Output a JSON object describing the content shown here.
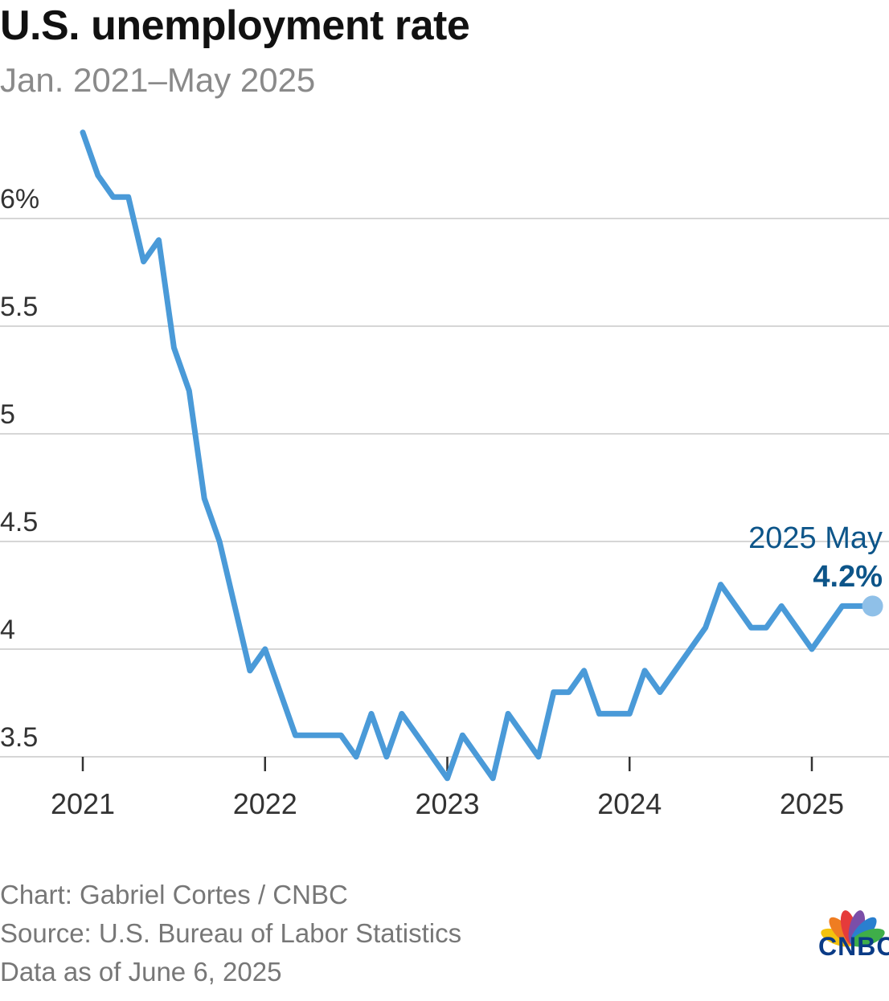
{
  "chart_data": {
    "type": "line",
    "title": "U.S. unemployment rate",
    "subtitle": "Jan. 2021–May 2025",
    "xlabel": "",
    "ylabel": "",
    "ylim": [
      3.4,
      6.35
    ],
    "y_ticks": [
      3.5,
      4,
      4.5,
      5,
      5.5,
      6
    ],
    "y_tick_labels": [
      "3.5",
      "4",
      "4.5",
      "5",
      "5.5",
      "6%"
    ],
    "x_ticks": [
      2021,
      2022,
      2023,
      2024,
      2025
    ],
    "x_tick_labels": [
      "2021",
      "2022",
      "2023",
      "2024",
      "2025"
    ],
    "grid": true,
    "series": [
      {
        "name": "Unemployment rate",
        "start": "2021-01",
        "values": [
          6.4,
          6.2,
          6.1,
          6.1,
          5.8,
          5.9,
          5.4,
          5.2,
          4.7,
          4.5,
          4.2,
          3.9,
          4.0,
          3.8,
          3.6,
          3.6,
          3.6,
          3.6,
          3.5,
          3.7,
          3.5,
          3.7,
          3.6,
          3.5,
          3.4,
          3.6,
          3.5,
          3.4,
          3.7,
          3.6,
          3.5,
          3.8,
          3.8,
          3.9,
          3.7,
          3.7,
          3.7,
          3.9,
          3.8,
          3.9,
          4.0,
          4.1,
          4.3,
          4.2,
          4.1,
          4.1,
          4.2,
          4.1,
          4.0,
          4.1,
          4.2,
          4.2,
          4.2
        ],
        "color": "#4a9ad8"
      }
    ],
    "annotation": {
      "label": "2025 May",
      "value_label": "4.2%",
      "color": "#0d5589"
    }
  },
  "footer": {
    "credit": "Chart: Gabriel Cortes / CNBC",
    "source": "Source: U.S. Bureau of Labor Statistics",
    "asof": "Data as of June 6, 2025"
  },
  "logo": {
    "text": "CNBC",
    "name": "cnbc-peacock-logo"
  }
}
